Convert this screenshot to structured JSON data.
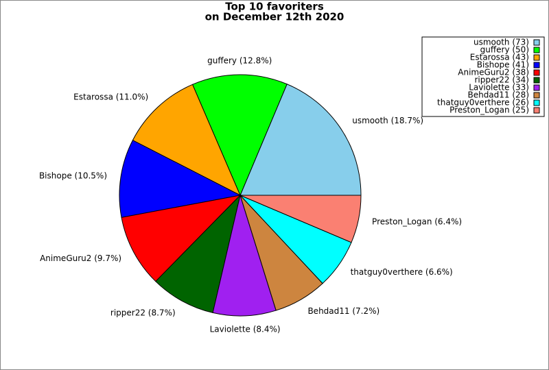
{
  "chart_data": {
    "type": "pie",
    "title": [
      "Top 10 favoriters",
      "on December 12th 2020"
    ],
    "categories": [
      "usmooth (73)",
      "guffery (50)",
      "Estarossa (43)",
      "Bishope (41)",
      "AnimeGuru2 (38)",
      "ripper22 (34)",
      "Laviolette (33)",
      "Behdad11 (28)",
      "thatguy0verthere (26)",
      "Preston_Logan (25)"
    ],
    "values": [
      73,
      50,
      43,
      41,
      38,
      34,
      33,
      28,
      26,
      25
    ],
    "value_labels": [
      "usmooth (18.7%)",
      "guffery (12.8%)",
      "Estarossa (11.0%)",
      "Bishope (10.5%)",
      "AnimeGuru2 (9.7%)",
      "ripper22 (8.7%)",
      "Laviolette (8.4%)",
      "Behdad11 (7.2%)",
      "thatguy0verthere (6.6%)",
      "Preston_Logan (6.4%)"
    ],
    "colors": [
      "#87ceeb",
      "#00ff00",
      "#ffa500",
      "#0000ff",
      "#ff0000",
      "#006400",
      "#a020f0",
      "#cd853f",
      "#00ffff",
      "#fa8072"
    ],
    "legend": "upper right"
  }
}
